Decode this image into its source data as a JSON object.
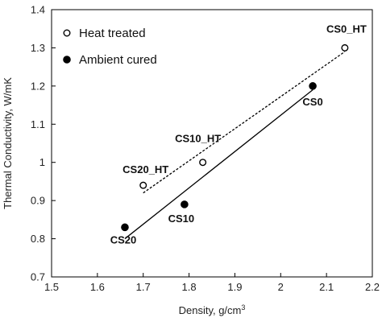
{
  "chart_data": {
    "type": "scatter",
    "xlabel": "Density, g/cm",
    "xlabel_sup": "3",
    "ylabel": "Thermal Conductivity, W/mK",
    "xlim": [
      1.5,
      2.2
    ],
    "ylim": [
      0.7,
      1.4
    ],
    "xticks": [
      "1.5",
      "1.6",
      "1.7",
      "1.8",
      "1.9",
      "2",
      "2.1",
      "2.2"
    ],
    "yticks": [
      "0.7",
      "0.8",
      "0.9",
      "1",
      "1.1",
      "1.2",
      "1.3",
      "1.4"
    ],
    "grid": false,
    "legend_position": "top-left",
    "series": [
      {
        "name": "Heat treated",
        "marker": "open-circle",
        "trendline": "dashed",
        "points": [
          {
            "label": "CS20_HT",
            "x": 1.7,
            "y": 0.94
          },
          {
            "label": "CS10_HT",
            "x": 1.83,
            "y": 1.0
          },
          {
            "label": "CS0_HT",
            "x": 2.14,
            "y": 1.3
          }
        ],
        "fit_line": [
          [
            1.7,
            0.92
          ],
          [
            2.14,
            1.29
          ]
        ]
      },
      {
        "name": "Ambient cured",
        "marker": "filled-circle",
        "trendline": "solid",
        "points": [
          {
            "label": "CS20",
            "x": 1.66,
            "y": 0.83
          },
          {
            "label": "CS10",
            "x": 1.79,
            "y": 0.89
          },
          {
            "label": "CS0",
            "x": 2.07,
            "y": 1.2
          }
        ],
        "fit_line": [
          [
            1.66,
            0.8
          ],
          [
            2.07,
            1.19
          ]
        ]
      }
    ]
  }
}
